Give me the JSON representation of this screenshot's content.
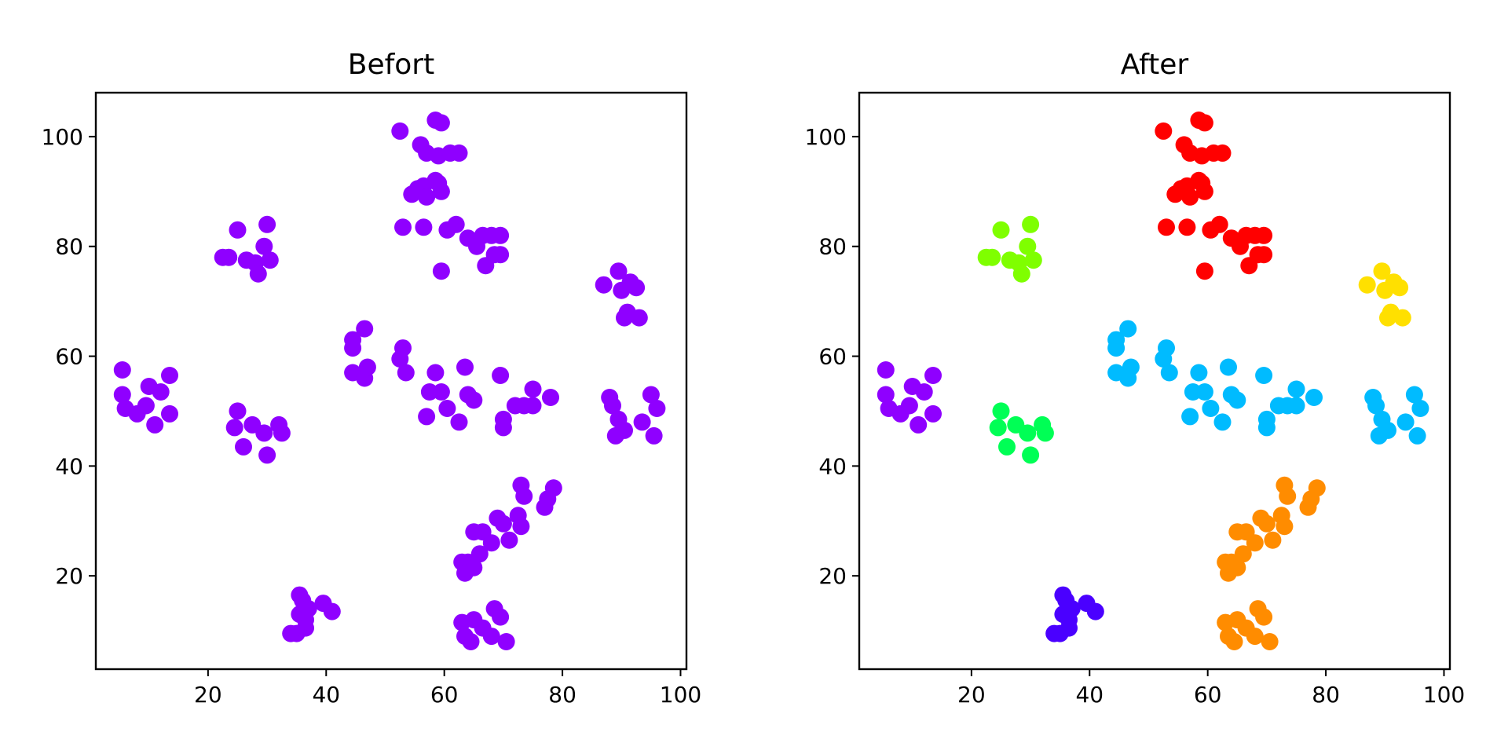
{
  "chart_data": [
    {
      "type": "scatter",
      "title": "Befort",
      "xlabel": "",
      "ylabel": "",
      "xlim": [
        1,
        101
      ],
      "ylim": [
        3,
        108
      ],
      "xticks": [
        20,
        40,
        60,
        80,
        100
      ],
      "yticks": [
        20,
        40,
        60,
        80,
        100
      ],
      "grid": false,
      "legend": "none",
      "marker_color": "#8f00ff",
      "points": [
        [
          5.5,
          57.5
        ],
        [
          5.5,
          53
        ],
        [
          6,
          50.5
        ],
        [
          8,
          49.5
        ],
        [
          9.5,
          51
        ],
        [
          10,
          54.5
        ],
        [
          11,
          47.5
        ],
        [
          12,
          53.5
        ],
        [
          13.5,
          56.5
        ],
        [
          13.5,
          49.5
        ],
        [
          22.5,
          78
        ],
        [
          23.5,
          78
        ],
        [
          25,
          83
        ],
        [
          26.5,
          77.5
        ],
        [
          28,
          77
        ],
        [
          28.5,
          75
        ],
        [
          29.5,
          80
        ],
        [
          30,
          84
        ],
        [
          30.5,
          77.5
        ],
        [
          25,
          50
        ],
        [
          24.5,
          47
        ],
        [
          26,
          43.5
        ],
        [
          27.5,
          47.5
        ],
        [
          29.5,
          46
        ],
        [
          30,
          42
        ],
        [
          32,
          47.5
        ],
        [
          32.5,
          46
        ],
        [
          52.5,
          101
        ],
        [
          56,
          98.5
        ],
        [
          57,
          97
        ],
        [
          58.5,
          103
        ],
        [
          59.5,
          102.5
        ],
        [
          59,
          96.5
        ],
        [
          61,
          97
        ],
        [
          62.5,
          97
        ],
        [
          54.5,
          89.5
        ],
        [
          55.5,
          90.5
        ],
        [
          56.5,
          91
        ],
        [
          57,
          89
        ],
        [
          58.5,
          92
        ],
        [
          59,
          91.5
        ],
        [
          59.5,
          90
        ],
        [
          53,
          83.5
        ],
        [
          56.5,
          83.5
        ],
        [
          60.5,
          83
        ],
        [
          62,
          84
        ],
        [
          64,
          81.5
        ],
        [
          65.5,
          80
        ],
        [
          66.5,
          82
        ],
        [
          67,
          76.5
        ],
        [
          68,
          82
        ],
        [
          68.5,
          78.5
        ],
        [
          69.5,
          82
        ],
        [
          69.5,
          78.5
        ],
        [
          59.5,
          75.5
        ],
        [
          87,
          73
        ],
        [
          89.5,
          75.5
        ],
        [
          90,
          72
        ],
        [
          91.5,
          73.5
        ],
        [
          92.5,
          72.5
        ],
        [
          90.5,
          67
        ],
        [
          91,
          68
        ],
        [
          93,
          67
        ],
        [
          44.5,
          63
        ],
        [
          44.5,
          61.5
        ],
        [
          46.5,
          65
        ],
        [
          44.5,
          57
        ],
        [
          46.5,
          56
        ],
        [
          47,
          58
        ],
        [
          52.5,
          59.5
        ],
        [
          53,
          61.5
        ],
        [
          53.5,
          57
        ],
        [
          58.5,
          57
        ],
        [
          57.5,
          53.5
        ],
        [
          57,
          49
        ],
        [
          59.5,
          53.5
        ],
        [
          60.5,
          50.5
        ],
        [
          62.5,
          48
        ],
        [
          63.5,
          58
        ],
        [
          64,
          53
        ],
        [
          65,
          52
        ],
        [
          69.5,
          56.5
        ],
        [
          70,
          48.5
        ],
        [
          70,
          47
        ],
        [
          72,
          51
        ],
        [
          73.5,
          51
        ],
        [
          75,
          54
        ],
        [
          75,
          51
        ],
        [
          78,
          52.5
        ],
        [
          88,
          52.5
        ],
        [
          88.5,
          51
        ],
        [
          89,
          45.5
        ],
        [
          89.5,
          48.5
        ],
        [
          90.5,
          46.5
        ],
        [
          93.5,
          48
        ],
        [
          95,
          53
        ],
        [
          96,
          50.5
        ],
        [
          95.5,
          45.5
        ],
        [
          73,
          36.5
        ],
        [
          73.5,
          34.5
        ],
        [
          77,
          32.5
        ],
        [
          77.5,
          34
        ],
        [
          78.5,
          36
        ],
        [
          63,
          22.5
        ],
        [
          64,
          22.5
        ],
        [
          63.5,
          20.5
        ],
        [
          65,
          21.5
        ],
        [
          65,
          28
        ],
        [
          66.5,
          28
        ],
        [
          66,
          24
        ],
        [
          68,
          26
        ],
        [
          69,
          30.5
        ],
        [
          70,
          29.5
        ],
        [
          71,
          26.5
        ],
        [
          72.5,
          31
        ],
        [
          73,
          29
        ],
        [
          63,
          11.5
        ],
        [
          63.5,
          9
        ],
        [
          64.5,
          8
        ],
        [
          65,
          12
        ],
        [
          66.5,
          10.5
        ],
        [
          68,
          9
        ],
        [
          68.5,
          14
        ],
        [
          69.5,
          12.5
        ],
        [
          70.5,
          8
        ],
        [
          35.5,
          16.5
        ],
        [
          36,
          15.5
        ],
        [
          35.5,
          13
        ],
        [
          37,
          14
        ],
        [
          36.5,
          12
        ],
        [
          36.5,
          10.5
        ],
        [
          35,
          9.5
        ],
        [
          34,
          9.5
        ],
        [
          39.5,
          15
        ],
        [
          41,
          13.5
        ]
      ]
    },
    {
      "type": "scatter",
      "title": "After",
      "xlabel": "",
      "ylabel": "",
      "xlim": [
        1,
        101
      ],
      "ylim": [
        3,
        108
      ],
      "xticks": [
        20,
        40,
        60,
        80,
        100
      ],
      "yticks": [
        20,
        40,
        60,
        80,
        100
      ],
      "grid": false,
      "legend": "none",
      "series": [
        {
          "color": "#8f00ff",
          "points": [
            [
              5.5,
              57.5
            ],
            [
              5.5,
              53
            ],
            [
              6,
              50.5
            ],
            [
              8,
              49.5
            ],
            [
              9.5,
              51
            ],
            [
              10,
              54.5
            ],
            [
              11,
              47.5
            ],
            [
              12,
              53.5
            ],
            [
              13.5,
              56.5
            ],
            [
              13.5,
              49.5
            ]
          ]
        },
        {
          "color": "#7fff00",
          "points": [
            [
              22.5,
              78
            ],
            [
              23.5,
              78
            ],
            [
              25,
              83
            ],
            [
              26.5,
              77.5
            ],
            [
              28,
              77
            ],
            [
              28.5,
              75
            ],
            [
              29.5,
              80
            ],
            [
              30,
              84
            ],
            [
              30.5,
              77.5
            ]
          ]
        },
        {
          "color": "#00ff55",
          "points": [
            [
              25,
              50
            ],
            [
              24.5,
              47
            ],
            [
              26,
              43.5
            ],
            [
              27.5,
              47.5
            ],
            [
              29.5,
              46
            ],
            [
              30,
              42
            ],
            [
              32,
              47.5
            ],
            [
              32.5,
              46
            ]
          ]
        },
        {
          "color": "#ff0000",
          "points": [
            [
              52.5,
              101
            ],
            [
              56,
              98.5
            ],
            [
              57,
              97
            ],
            [
              58.5,
              103
            ],
            [
              59.5,
              102.5
            ],
            [
              59,
              96.5
            ],
            [
              61,
              97
            ],
            [
              62.5,
              97
            ],
            [
              54.5,
              89.5
            ],
            [
              55.5,
              90.5
            ],
            [
              56.5,
              91
            ],
            [
              57,
              89
            ],
            [
              58.5,
              92
            ],
            [
              59,
              91.5
            ],
            [
              59.5,
              90
            ],
            [
              53,
              83.5
            ],
            [
              56.5,
              83.5
            ],
            [
              60.5,
              83
            ],
            [
              62,
              84
            ],
            [
              64,
              81.5
            ],
            [
              65.5,
              80
            ],
            [
              66.5,
              82
            ],
            [
              67,
              76.5
            ],
            [
              68,
              82
            ],
            [
              68.5,
              78.5
            ],
            [
              69.5,
              82
            ],
            [
              69.5,
              78.5
            ],
            [
              59.5,
              75.5
            ]
          ]
        },
        {
          "color": "#ffe000",
          "points": [
            [
              87,
              73
            ],
            [
              89.5,
              75.5
            ],
            [
              90,
              72
            ],
            [
              91.5,
              73.5
            ],
            [
              92.5,
              72.5
            ],
            [
              90.5,
              67
            ],
            [
              91,
              68
            ],
            [
              93,
              67
            ]
          ]
        },
        {
          "color": "#00bbff",
          "points": [
            [
              44.5,
              63
            ],
            [
              44.5,
              61.5
            ],
            [
              46.5,
              65
            ],
            [
              44.5,
              57
            ],
            [
              46.5,
              56
            ],
            [
              47,
              58
            ],
            [
              52.5,
              59.5
            ],
            [
              53,
              61.5
            ],
            [
              53.5,
              57
            ],
            [
              58.5,
              57
            ],
            [
              57.5,
              53.5
            ],
            [
              57,
              49
            ],
            [
              59.5,
              53.5
            ],
            [
              60.5,
              50.5
            ],
            [
              62.5,
              48
            ],
            [
              63.5,
              58
            ],
            [
              64,
              53
            ],
            [
              65,
              52
            ],
            [
              69.5,
              56.5
            ],
            [
              70,
              48.5
            ],
            [
              70,
              47
            ],
            [
              72,
              51
            ],
            [
              73.5,
              51
            ],
            [
              75,
              54
            ],
            [
              75,
              51
            ],
            [
              78,
              52.5
            ],
            [
              88,
              52.5
            ],
            [
              88.5,
              51
            ],
            [
              89,
              45.5
            ],
            [
              89.5,
              48.5
            ],
            [
              90.5,
              46.5
            ],
            [
              93.5,
              48
            ],
            [
              95,
              53
            ],
            [
              96,
              50.5
            ],
            [
              95.5,
              45.5
            ]
          ]
        },
        {
          "color": "#ff8c00",
          "points": [
            [
              73,
              36.5
            ],
            [
              73.5,
              34.5
            ],
            [
              77,
              32.5
            ],
            [
              77.5,
              34
            ],
            [
              78.5,
              36
            ],
            [
              63,
              22.5
            ],
            [
              64,
              22.5
            ],
            [
              63.5,
              20.5
            ],
            [
              65,
              21.5
            ],
            [
              65,
              28
            ],
            [
              66.5,
              28
            ],
            [
              66,
              24
            ],
            [
              68,
              26
            ],
            [
              69,
              30.5
            ],
            [
              70,
              29.5
            ],
            [
              71,
              26.5
            ],
            [
              72.5,
              31
            ],
            [
              73,
              29
            ],
            [
              63,
              11.5
            ],
            [
              63.5,
              9
            ],
            [
              64.5,
              8
            ],
            [
              65,
              12
            ],
            [
              66.5,
              10.5
            ],
            [
              68,
              9
            ],
            [
              68.5,
              14
            ],
            [
              69.5,
              12.5
            ],
            [
              70.5,
              8
            ]
          ]
        },
        {
          "color": "#4a00ff",
          "points": [
            [
              35.5,
              16.5
            ],
            [
              36,
              15.5
            ],
            [
              35.5,
              13
            ],
            [
              37,
              14
            ],
            [
              36.5,
              12
            ],
            [
              36.5,
              10.5
            ],
            [
              35,
              9.5
            ],
            [
              34,
              9.5
            ],
            [
              39.5,
              15
            ],
            [
              41,
              13.5
            ]
          ]
        }
      ]
    }
  ]
}
